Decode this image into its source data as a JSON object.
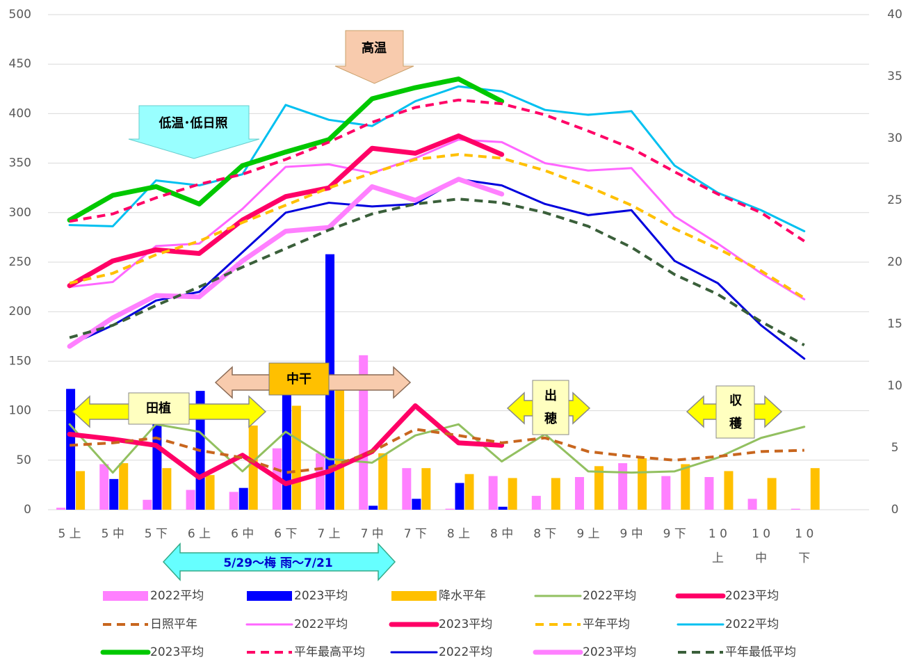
{
  "chart_data": {
    "type": "bar-line",
    "categories": [
      "5 上",
      "5 中",
      "5 下",
      "6 上",
      "6 中",
      "6 下",
      "7 上",
      "7 中",
      "7 下",
      "8 上",
      "8 中",
      "8 下",
      "9 上",
      "9 中",
      "9 下",
      [
        "1 0",
        "上"
      ],
      [
        "1 0",
        "中"
      ],
      [
        "1 0",
        "下"
      ],
      null
    ],
    "ylim": [
      0,
      500
    ],
    "yticks": [
      0,
      50,
      100,
      150,
      200,
      250,
      300,
      350,
      400,
      450,
      500
    ],
    "y2lim": [
      0,
      40
    ],
    "y2ticks": [
      0,
      5,
      10,
      15,
      20,
      25,
      30,
      35,
      40
    ],
    "grid": true,
    "series": [
      {
        "name": "2022平均",
        "kind": "bar",
        "color": "#ff80ff",
        "values": [
          2,
          46,
          10,
          20,
          18,
          62,
          57,
          156,
          42,
          1,
          34,
          14,
          33,
          47,
          34,
          33,
          11,
          1,
          null
        ]
      },
      {
        "name": "2023平均",
        "kind": "bar",
        "color": "#0000ff",
        "values": [
          122,
          31,
          88,
          120,
          22,
          118,
          258,
          4,
          11,
          27,
          3,
          null,
          null,
          null,
          null,
          null,
          null,
          null,
          null
        ]
      },
      {
        "name": "降水平年",
        "kind": "bar",
        "color": "#ffc000",
        "values": [
          39,
          47,
          42,
          35,
          85,
          105,
          125,
          57,
          42,
          36,
          32,
          32,
          44,
          52,
          46,
          39,
          32,
          42,
          null
        ]
      },
      {
        "name": "2022平均",
        "kind": "line",
        "style": "thin",
        "axis": "y2",
        "color": "#92c060",
        "values": [
          6.9,
          3.0,
          6.9,
          6.3,
          3.1,
          6.3,
          4.1,
          3.8,
          6.0,
          6.9,
          3.9,
          6.1,
          3.1,
          3.0,
          3.1,
          4.2,
          5.8,
          6.7,
          null
        ]
      },
      {
        "name": "2023平均",
        "kind": "line",
        "style": "thick",
        "axis": "y2",
        "color": "#ff0066",
        "values": [
          6.1,
          5.7,
          5.2,
          2.6,
          4.4,
          2.1,
          3.1,
          4.7,
          8.4,
          5.4,
          5.2,
          null,
          null,
          null,
          null,
          null,
          null,
          null,
          null
        ]
      },
      {
        "name": "日照平年",
        "kind": "line",
        "style": "dashed",
        "axis": "y2",
        "color": "#c8661e",
        "values": [
          5.2,
          5.4,
          5.8,
          4.8,
          4.2,
          3.0,
          3.4,
          4.7,
          6.5,
          6.0,
          5.4,
          5.8,
          4.7,
          4.3,
          4.0,
          4.3,
          4.7,
          4.8,
          null
        ]
      },
      {
        "name": "2022平均",
        "kind": "line",
        "style": "thin",
        "axis": "y2",
        "color": "#ff66ff",
        "values": [
          18.0,
          18.4,
          21.3,
          21.5,
          24.3,
          27.7,
          27.9,
          27.2,
          28.4,
          29.9,
          29.7,
          28.0,
          27.4,
          27.6,
          23.7,
          21.5,
          19.1,
          17.0,
          null
        ]
      },
      {
        "name": "2023平均",
        "kind": "line",
        "style": "thick",
        "axis": "y2",
        "color": "#ff0066",
        "values": [
          18.1,
          20.1,
          21.0,
          20.7,
          23.4,
          25.3,
          26.0,
          29.2,
          28.8,
          30.2,
          28.7,
          null,
          null,
          null,
          null,
          null,
          null,
          null,
          null
        ]
      },
      {
        "name": "平年平均",
        "kind": "line",
        "style": "dashed",
        "axis": "y2",
        "color": "#ffc000",
        "values": [
          18.3,
          19.1,
          20.6,
          21.7,
          23.2,
          24.6,
          26.0,
          27.2,
          28.3,
          28.7,
          28.4,
          27.4,
          26.1,
          24.6,
          22.7,
          21.1,
          19.3,
          17.1,
          null
        ]
      },
      {
        "name": "2022平均",
        "kind": "line",
        "style": "thin",
        "axis": "y2",
        "color": "#00c0f0",
        "values": [
          23.0,
          22.9,
          26.6,
          26.2,
          27.1,
          32.7,
          31.5,
          31.0,
          33.0,
          34.2,
          33.8,
          32.3,
          31.9,
          32.2,
          27.8,
          25.6,
          24.2,
          22.5,
          null
        ]
      },
      {
        "name": "2023平均",
        "kind": "line",
        "style": "thick",
        "axis": "y2",
        "color": "#00c800",
        "values": [
          23.4,
          25.4,
          26.1,
          24.7,
          27.8,
          28.9,
          29.9,
          33.2,
          34.1,
          34.8,
          33.0,
          null,
          null,
          null,
          null,
          null,
          null,
          null,
          null
        ]
      },
      {
        "name": "平年最高平均",
        "kind": "line",
        "style": "dashed",
        "axis": "y2",
        "color": "#ff0066",
        "values": [
          23.3,
          23.9,
          25.2,
          26.3,
          27.1,
          28.3,
          29.7,
          31.3,
          32.5,
          33.1,
          32.8,
          31.9,
          30.6,
          29.2,
          27.3,
          25.5,
          24.0,
          21.7,
          null
        ]
      },
      {
        "name": "2022平均",
        "kind": "line",
        "style": "thin",
        "axis": "y2",
        "color": "#0000dd",
        "values": [
          13.3,
          14.9,
          16.9,
          17.6,
          20.8,
          24.0,
          24.8,
          24.5,
          24.7,
          26.7,
          26.2,
          24.7,
          23.8,
          24.2,
          20.1,
          18.3,
          14.9,
          12.2,
          null
        ]
      },
      {
        "name": "2023平均",
        "kind": "line",
        "style": "thick",
        "axis": "y2",
        "color": "#ff80ff",
        "values": [
          13.2,
          15.5,
          17.3,
          17.2,
          20.1,
          22.5,
          22.8,
          26.1,
          25.0,
          26.7,
          25.5,
          null,
          null,
          null,
          null,
          null,
          null,
          null,
          null
        ]
      },
      {
        "name": "平年最低平均",
        "kind": "line",
        "style": "dashed",
        "axis": "y2",
        "color": "#3a5f3a",
        "values": [
          13.9,
          14.9,
          16.5,
          18.0,
          19.6,
          21.1,
          22.6,
          23.9,
          24.7,
          25.1,
          24.8,
          24.0,
          22.9,
          21.2,
          19.0,
          17.4,
          15.2,
          13.3,
          null
        ]
      }
    ],
    "annotations": [
      {
        "lines": [
          "高温"
        ]
      },
      {
        "lines": [
          "低温･低日照"
        ]
      },
      {
        "lines": [
          "中干"
        ]
      },
      {
        "lines": [
          "田植"
        ]
      },
      {
        "lines": [
          "出",
          "穂"
        ]
      },
      {
        "lines": [
          "収",
          "穫"
        ]
      },
      {
        "lines": [
          "5/29～梅 雨～7/21"
        ]
      }
    ]
  }
}
